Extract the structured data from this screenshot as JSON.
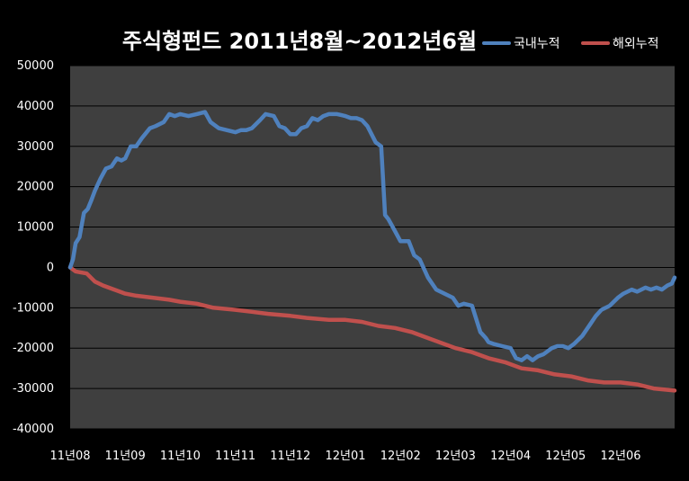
{
  "chart_data": {
    "type": "line",
    "title": "주식형펀드 2011년8월~2012년6월",
    "xlabel": "",
    "ylabel": "",
    "ylim": [
      -40000,
      50000
    ],
    "yticks": [
      "50000",
      "40000",
      "30000",
      "20000",
      "10000",
      "0",
      "-10000",
      "-20000",
      "-30000",
      "-40000"
    ],
    "ytick_values": [
      50000,
      40000,
      30000,
      20000,
      10000,
      0,
      -10000,
      -20000,
      -30000,
      -40000
    ],
    "x_tick_labels": [
      "11년08",
      "11년09",
      "11년10",
      "11년11",
      "11년12",
      "12년01",
      "12년02",
      "12년03",
      "12년04",
      "12년05",
      "12년06"
    ],
    "x_range": [
      0,
      10.98
    ],
    "grid": true,
    "legend_position": "top-right",
    "colors": {
      "background": "#000000",
      "plot_area": "#3f3f3f",
      "grid": "#000000",
      "text": "#ffffff"
    },
    "series": [
      {
        "name": "국내누적",
        "color": "#4f81bd",
        "x": [
          0,
          0.05,
          0.1,
          0.17,
          0.25,
          0.32,
          0.38,
          0.45,
          0.55,
          0.65,
          0.75,
          0.85,
          0.93,
          1.0,
          1.1,
          1.2,
          1.3,
          1.45,
          1.55,
          1.7,
          1.8,
          1.9,
          2.0,
          2.15,
          2.3,
          2.45,
          2.55,
          2.7,
          2.85,
          3.0,
          3.1,
          3.2,
          3.3,
          3.45,
          3.55,
          3.7,
          3.8,
          3.9,
          4.0,
          4.1,
          4.2,
          4.3,
          4.4,
          4.5,
          4.6,
          4.7,
          4.85,
          5.0,
          5.1,
          5.2,
          5.3,
          5.4,
          5.55,
          5.65,
          5.72,
          5.78,
          5.82,
          5.9,
          6.0,
          6.15,
          6.25,
          6.35,
          6.5,
          6.65,
          6.8,
          6.95,
          7.05,
          7.15,
          7.3,
          7.45,
          7.55,
          7.6,
          7.7,
          7.85,
          8.0,
          8.1,
          8.2,
          8.3,
          8.4,
          8.5,
          8.6,
          8.75,
          8.85,
          8.95,
          9.05,
          9.15,
          9.3,
          9.45,
          9.55,
          9.65,
          9.8,
          9.95,
          10.05,
          10.2,
          10.3,
          10.45,
          10.55,
          10.65,
          10.75,
          10.85,
          10.93,
          10.98
        ],
        "values": [
          0,
          2000,
          6000,
          7500,
          13500,
          14500,
          16500,
          19000,
          22000,
          24500,
          25000,
          27000,
          26500,
          27000,
          30000,
          30000,
          32000,
          34500,
          35000,
          36000,
          38000,
          37500,
          38000,
          37500,
          38000,
          38500,
          36000,
          34500,
          34000,
          33500,
          34000,
          34000,
          34500,
          36500,
          38000,
          37500,
          35000,
          34500,
          33000,
          33000,
          34500,
          35000,
          37000,
          36500,
          37500,
          38000,
          38000,
          37500,
          37000,
          37000,
          36500,
          35000,
          31000,
          30000,
          13000,
          12000,
          11000,
          9000,
          6500,
          6500,
          3000,
          2000,
          -2500,
          -5500,
          -6500,
          -7500,
          -9500,
          -9000,
          -9500,
          -16000,
          -17500,
          -18500,
          -19000,
          -19500,
          -20000,
          -22500,
          -23000,
          -22000,
          -23000,
          -22000,
          -21500,
          -20000,
          -19500,
          -19500,
          -20000,
          -19000,
          -17000,
          -14000,
          -12000,
          -10500,
          -9500,
          -7500,
          -6500,
          -5500,
          -6000,
          -5000,
          -5500,
          -5000,
          -5500,
          -4500,
          -4000,
          -2500
        ]
      },
      {
        "name": "해외누적",
        "color": "#c0504d",
        "x": [
          0,
          0.1,
          0.3,
          0.45,
          0.6,
          0.8,
          1.0,
          1.2,
          1.5,
          1.8,
          2.0,
          2.3,
          2.6,
          3.0,
          3.3,
          3.6,
          4.0,
          4.3,
          4.7,
          5.0,
          5.3,
          5.6,
          5.9,
          6.2,
          6.5,
          6.8,
          7.0,
          7.3,
          7.6,
          7.9,
          8.2,
          8.5,
          8.8,
          9.1,
          9.4,
          9.7,
          10.0,
          10.3,
          10.6,
          10.98
        ],
        "values": [
          0,
          -1000,
          -1500,
          -3500,
          -4500,
          -5500,
          -6500,
          -7000,
          -7500,
          -8000,
          -8500,
          -9000,
          -10000,
          -10500,
          -11000,
          -11500,
          -12000,
          -12500,
          -13000,
          -13000,
          -13500,
          -14500,
          -15000,
          -16000,
          -17500,
          -19000,
          -20000,
          -21000,
          -22500,
          -23500,
          -25000,
          -25500,
          -26500,
          -27000,
          -28000,
          -28500,
          -28500,
          -29000,
          -30000,
          -30500
        ]
      }
    ]
  }
}
